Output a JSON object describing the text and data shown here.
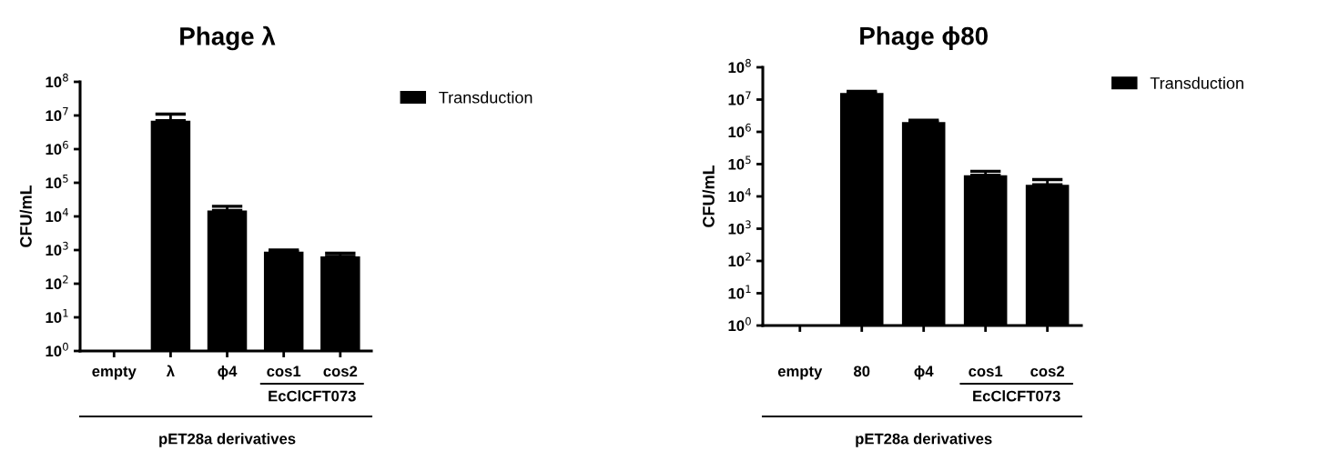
{
  "chart_data": [
    {
      "type": "bar",
      "title": "Phage λ",
      "ylabel": "CFU/mL",
      "categories": [
        "empty",
        "λ",
        "ϕ4",
        "cos1",
        "cos2"
      ],
      "series": [
        {
          "name": "Transduction",
          "color": "#000000",
          "values": [
            null,
            7000000,
            15000,
            900,
            650
          ],
          "errors": [
            null,
            [
              7000000,
              11000000
            ],
            [
              15000,
              20000
            ],
            [
              900,
              1000
            ],
            [
              650,
              800
            ]
          ]
        }
      ],
      "log": true,
      "ylim": [
        1,
        100000000
      ],
      "yticks": [
        {
          "value": 1,
          "label": "10$^{0}$"
        },
        {
          "value": 10,
          "label": "10$^{1}$"
        },
        {
          "value": 100,
          "label": "10$^{2}$"
        },
        {
          "value": 1000,
          "label": "10$^{3}$"
        },
        {
          "value": 10000,
          "label": "10$^{4}$"
        },
        {
          "value": 100000,
          "label": "10$^{5}$"
        },
        {
          "value": 1000000,
          "label": "10$^{6}$"
        },
        {
          "value": 10000000,
          "label": "10$^{7}$"
        },
        {
          "value": 100000000,
          "label": "10$^{8}$"
        }
      ],
      "legend": "top right",
      "grid": false,
      "annotations": [
        "EcClCFT073",
        "pET28a derivatives"
      ]
    },
    {
      "type": "bar",
      "title": "Phage ϕ80",
      "ylabel": "CFU/mL",
      "categories": [
        "empty",
        "80",
        "ϕ4",
        "cos1",
        "cos2"
      ],
      "series": [
        {
          "name": "Transduction",
          "color": "#000000",
          "values": [
            null,
            16000000,
            2000000,
            45000,
            23000
          ],
          "errors": [
            null,
            [
              16000000,
              18000000
            ],
            [
              2000000,
              2300000
            ],
            [
              45000,
              60000
            ],
            [
              23000,
              33000
            ]
          ]
        }
      ],
      "log": true,
      "ylim": [
        1,
        100000000
      ],
      "yticks": [
        {
          "value": 1,
          "label": "10$^{0}$"
        },
        {
          "value": 10,
          "label": "10$^{1}$"
        },
        {
          "value": 100,
          "label": "10$^{2}$"
        },
        {
          "value": 1000,
          "label": "10$^{3}$"
        },
        {
          "value": 10000,
          "label": "10$^{4}$"
        },
        {
          "value": 100000,
          "label": "10$^{5}$"
        },
        {
          "value": 1000000,
          "label": "10$^{6}$"
        },
        {
          "value": 10000000,
          "label": "10$^{7}$"
        },
        {
          "value": 100000000,
          "label": "10$^{8}$"
        }
      ],
      "legend": "top right",
      "grid": false,
      "annotations": [
        "EcClCFT073",
        "pET28a derivatives"
      ]
    }
  ]
}
